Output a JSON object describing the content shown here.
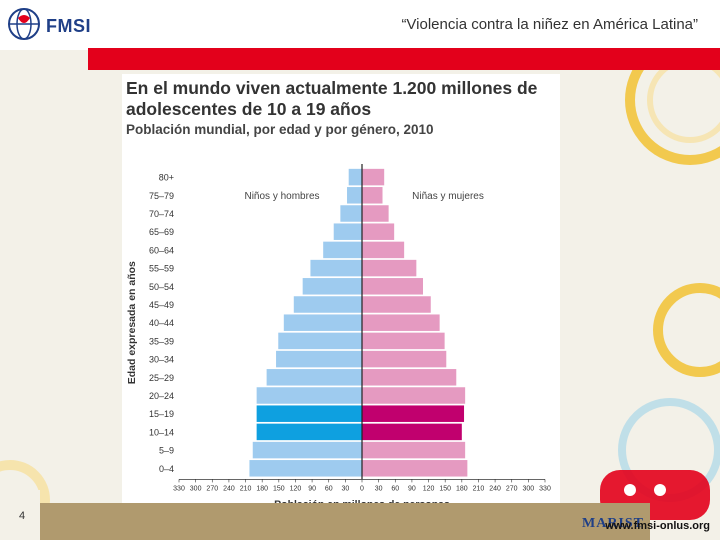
{
  "header": {
    "title": "“Violencia contra la niñez en América Latina”",
    "logo_text": "FMSI"
  },
  "footer": {
    "page_number": "4",
    "url": "www.fmsi-onlus.org",
    "marist_text": "MARIST"
  },
  "colors": {
    "red_band": "#e3001b",
    "male": "#9ecbef",
    "male_highlight": "#0ea0e0",
    "female": "#e59ac1",
    "female_highlight": "#c1006e",
    "bottom_bar": "#b09a6e"
  },
  "chart_data": {
    "type": "bar",
    "orientation": "horizontal",
    "variant": "population-pyramid",
    "title": "En el mundo viven actualmente 1.200 millones de adolescentes de 10 a 19 años",
    "subtitle": "Población mundial, por edad y por género, 2010",
    "xlabel": "Población en millones de personas",
    "ylabel": "Edad expresada en años",
    "xlim": [
      0,
      330
    ],
    "x_ticks": [
      "330",
      "300",
      "270",
      "240",
      "210",
      "180",
      "150",
      "120",
      "90",
      "60",
      "30",
      "0",
      "30",
      "60",
      "90",
      "120",
      "150",
      "180",
      "210",
      "240",
      "270",
      "300",
      "330"
    ],
    "categories": [
      "80+",
      "75–79",
      "70–74",
      "65–69",
      "60–64",
      "55–59",
      "50–54",
      "45–49",
      "40–44",
      "35–39",
      "30–34",
      "25–29",
      "20–24",
      "15–19",
      "10–14",
      "5–9",
      "0–4"
    ],
    "highlighted_categories": [
      "15–19",
      "10–14"
    ],
    "series": [
      {
        "name": "Niños y hombres",
        "values": [
          24,
          27,
          39,
          51,
          70,
          93,
          107,
          123,
          141,
          151,
          155,
          172,
          190,
          190,
          190,
          197,
          203
        ]
      },
      {
        "name": "Niñas y mujeres",
        "values": [
          40,
          37,
          48,
          58,
          76,
          98,
          110,
          124,
          140,
          149,
          152,
          170,
          186,
          184,
          180,
          186,
          190
        ]
      }
    ]
  }
}
